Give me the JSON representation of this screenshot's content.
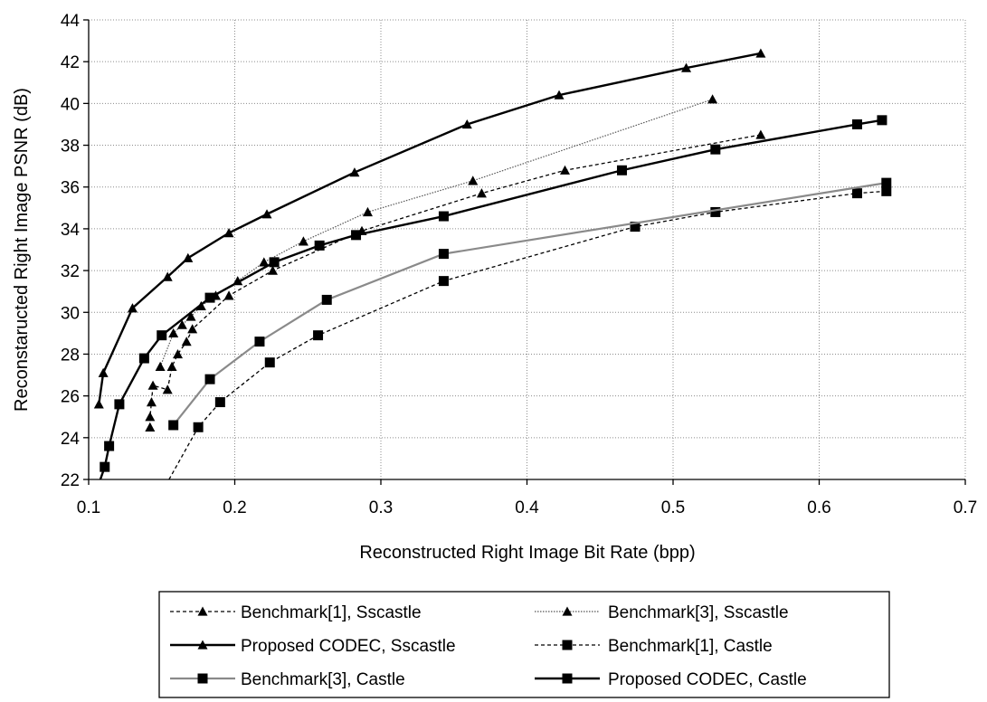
{
  "chart_data": {
    "type": "line",
    "title": "",
    "xlabel": "Reconstructed Right Image Bit Rate (bpp)",
    "ylabel": "Reconstaructed Right Image PSNR (dB)",
    "xlim": [
      0.1,
      0.7
    ],
    "ylim": [
      22,
      44
    ],
    "x_ticks": [
      "0.1",
      "0.2",
      "0.3",
      "0.4",
      "0.5",
      "0.6",
      "0.7"
    ],
    "y_ticks": [
      "22",
      "24",
      "26",
      "28",
      "30",
      "32",
      "34",
      "36",
      "38",
      "40",
      "42",
      "44"
    ],
    "grid": "both",
    "legend_position": "bottom",
    "series": [
      {
        "name": "Benchmark[1], Sscastle",
        "marker": "triangle",
        "line": "dashed",
        "color": "#000000",
        "x": [
          0.142,
          0.142,
          0.143,
          0.144,
          0.154,
          0.157,
          0.161,
          0.167,
          0.171,
          0.196,
          0.226,
          0.287,
          0.369,
          0.426,
          0.56
        ],
        "y": [
          24.5,
          25.0,
          25.7,
          26.5,
          26.3,
          27.4,
          28.0,
          28.6,
          29.2,
          30.8,
          32.0,
          33.9,
          35.7,
          36.8,
          38.5
        ]
      },
      {
        "name": "Benchmark[3], Sscastle",
        "marker": "triangle",
        "line": "dotted",
        "color": "#555555",
        "x": [
          0.149,
          0.158,
          0.164,
          0.17,
          0.177,
          0.187,
          0.202,
          0.22,
          0.247,
          0.291,
          0.363,
          0.527
        ],
        "y": [
          27.4,
          29.0,
          29.4,
          29.8,
          30.3,
          30.8,
          31.5,
          32.4,
          33.4,
          34.8,
          36.3,
          40.2
        ]
      },
      {
        "name": "Proposed CODEC, Sscastle",
        "marker": "triangle",
        "line": "solid",
        "color": "#000000",
        "x": [
          0.107,
          0.11,
          0.13,
          0.154,
          0.168,
          0.196,
          0.222,
          0.282,
          0.359,
          0.422,
          0.509,
          0.56
        ],
        "y": [
          25.6,
          27.1,
          30.2,
          31.7,
          32.6,
          33.8,
          34.7,
          36.7,
          39.0,
          40.4,
          41.7,
          42.4
        ]
      },
      {
        "name": "Benchmark[1], Castle",
        "marker": "square",
        "line": "dashed",
        "color": "#000000",
        "x": [
          0.155,
          0.175,
          0.19,
          0.224,
          0.257,
          0.343,
          0.474,
          0.529,
          0.626,
          0.646
        ],
        "y": [
          22.0,
          24.5,
          25.7,
          27.6,
          28.9,
          31.5,
          34.1,
          34.8,
          35.7,
          35.8
        ]
      },
      {
        "name": "Benchmark[3], Castle",
        "marker": "square",
        "line": "solid",
        "color": "#8a8a8a",
        "x": [
          0.158,
          0.183,
          0.217,
          0.263,
          0.343,
          0.646
        ],
        "y": [
          24.6,
          26.8,
          28.6,
          30.6,
          32.8,
          36.2
        ]
      },
      {
        "name": "Proposed CODEC, Castle",
        "marker": "square",
        "line": "solid",
        "color": "#000000",
        "x": [
          0.108,
          0.111,
          0.114,
          0.121,
          0.138,
          0.15,
          0.183,
          0.227,
          0.258,
          0.283,
          0.343,
          0.465,
          0.529,
          0.626,
          0.643
        ],
        "y": [
          22.0,
          22.6,
          23.6,
          25.6,
          27.8,
          28.9,
          30.7,
          32.4,
          33.2,
          33.7,
          34.6,
          36.8,
          37.8,
          39.0,
          39.2
        ]
      }
    ]
  }
}
